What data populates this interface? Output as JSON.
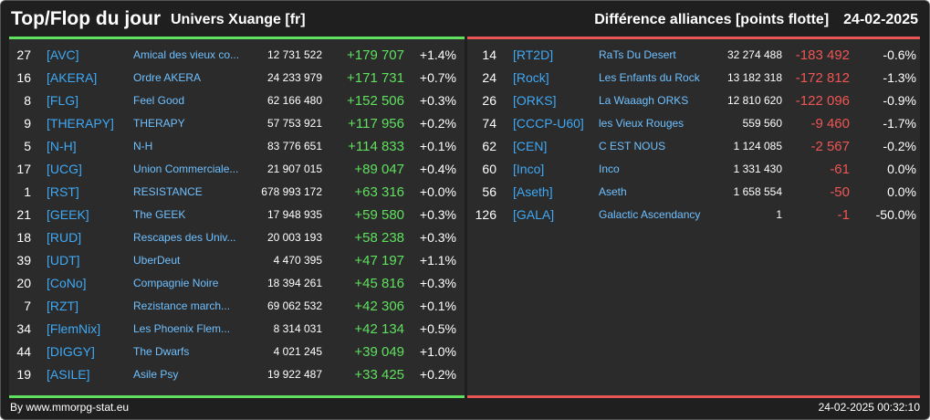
{
  "header": {
    "title": "Top/Flop du jour",
    "universe": "Univers Xuange [fr]",
    "category": "Différence alliances [points flotte]",
    "date": "24-02-2025"
  },
  "colors": {
    "top_accent": "#5fe05f",
    "flop_accent": "#e85555",
    "tag": "#3fa9f5",
    "name": "#6fc0ff"
  },
  "top": [
    {
      "rank": "27",
      "tag": "[AVC]",
      "name": "Amical des vieux co...",
      "points": "12 731 522",
      "diff": "+179 707",
      "pct": "+1.4%"
    },
    {
      "rank": "16",
      "tag": "[AKERA]",
      "name": "Ordre AKERA",
      "points": "24 233 979",
      "diff": "+171 731",
      "pct": "+0.7%"
    },
    {
      "rank": "8",
      "tag": "[FLG]",
      "name": "Feel Good",
      "points": "62 166 480",
      "diff": "+152 506",
      "pct": "+0.3%"
    },
    {
      "rank": "9",
      "tag": "[THERAPY]",
      "name": "THERAPY",
      "points": "57 753 921",
      "diff": "+117 956",
      "pct": "+0.2%"
    },
    {
      "rank": "5",
      "tag": "[N-H]",
      "name": "N-H",
      "points": "83 776 651",
      "diff": "+114 833",
      "pct": "+0.1%"
    },
    {
      "rank": "17",
      "tag": "[UCG]",
      "name": "Union Commerciale...",
      "points": "21 907 015",
      "diff": "+89 047",
      "pct": "+0.4%"
    },
    {
      "rank": "1",
      "tag": "[RST]",
      "name": "RESISTANCE",
      "points": "678 993 172",
      "diff": "+63 316",
      "pct": "+0.0%"
    },
    {
      "rank": "21",
      "tag": "[GEEK]",
      "name": "The GEEK",
      "points": "17 948 935",
      "diff": "+59 580",
      "pct": "+0.3%"
    },
    {
      "rank": "18",
      "tag": "[RUD]",
      "name": "Rescapes des Univ...",
      "points": "20 003 193",
      "diff": "+58 238",
      "pct": "+0.3%"
    },
    {
      "rank": "39",
      "tag": "[UDT]",
      "name": "UberDeut",
      "points": "4 470 395",
      "diff": "+47 197",
      "pct": "+1.1%"
    },
    {
      "rank": "20",
      "tag": "[CoNo]",
      "name": "Compagnie Noire",
      "points": "18 394 261",
      "diff": "+45 816",
      "pct": "+0.3%"
    },
    {
      "rank": "7",
      "tag": "[RZT]",
      "name": "Rezistance march...",
      "points": "69 062 532",
      "diff": "+42 306",
      "pct": "+0.1%"
    },
    {
      "rank": "34",
      "tag": "[FlemNix]",
      "name": "Les Phoenix Flem...",
      "points": "8 314 031",
      "diff": "+42 134",
      "pct": "+0.5%"
    },
    {
      "rank": "44",
      "tag": "[DIGGY]",
      "name": "The Dwarfs",
      "points": "4 021 245",
      "diff": "+39 049",
      "pct": "+1.0%"
    },
    {
      "rank": "19",
      "tag": "[ASILE]",
      "name": "Asile Psy",
      "points": "19 922 487",
      "diff": "+33 425",
      "pct": "+0.2%"
    }
  ],
  "flop": [
    {
      "rank": "14",
      "tag": "[RT2D]",
      "name": "RaTs Du Desert",
      "points": "32 274 488",
      "diff": "-183 492",
      "pct": "-0.6%"
    },
    {
      "rank": "24",
      "tag": "[Rock]",
      "name": "Les Enfants du Rock",
      "points": "13 182 318",
      "diff": "-172 812",
      "pct": "-1.3%"
    },
    {
      "rank": "26",
      "tag": "[ORKS]",
      "name": "La Waaagh ORKS",
      "points": "12 810 620",
      "diff": "-122 096",
      "pct": "-0.9%"
    },
    {
      "rank": "74",
      "tag": "[CCCP-U60]",
      "name": "les Vieux Rouges",
      "points": "559 560",
      "diff": "-9 460",
      "pct": "-1.7%"
    },
    {
      "rank": "62",
      "tag": "[CEN]",
      "name": "C EST NOUS",
      "points": "1 124 085",
      "diff": "-2 567",
      "pct": "-0.2%"
    },
    {
      "rank": "60",
      "tag": "[Inco]",
      "name": "Inco",
      "points": "1 331 430",
      "diff": "-61",
      "pct": "0.0%"
    },
    {
      "rank": "56",
      "tag": "[Aseth]",
      "name": "Aseth",
      "points": "1 658 554",
      "diff": "-50",
      "pct": "0.0%"
    },
    {
      "rank": "126",
      "tag": "[GALA]",
      "name": "Galactic Ascendancy",
      "points": "1",
      "diff": "-1",
      "pct": "-50.0%"
    }
  ],
  "footer": {
    "source": "By www.mmorpg-stat.eu",
    "timestamp": "24-02-2025 00:32:10"
  }
}
